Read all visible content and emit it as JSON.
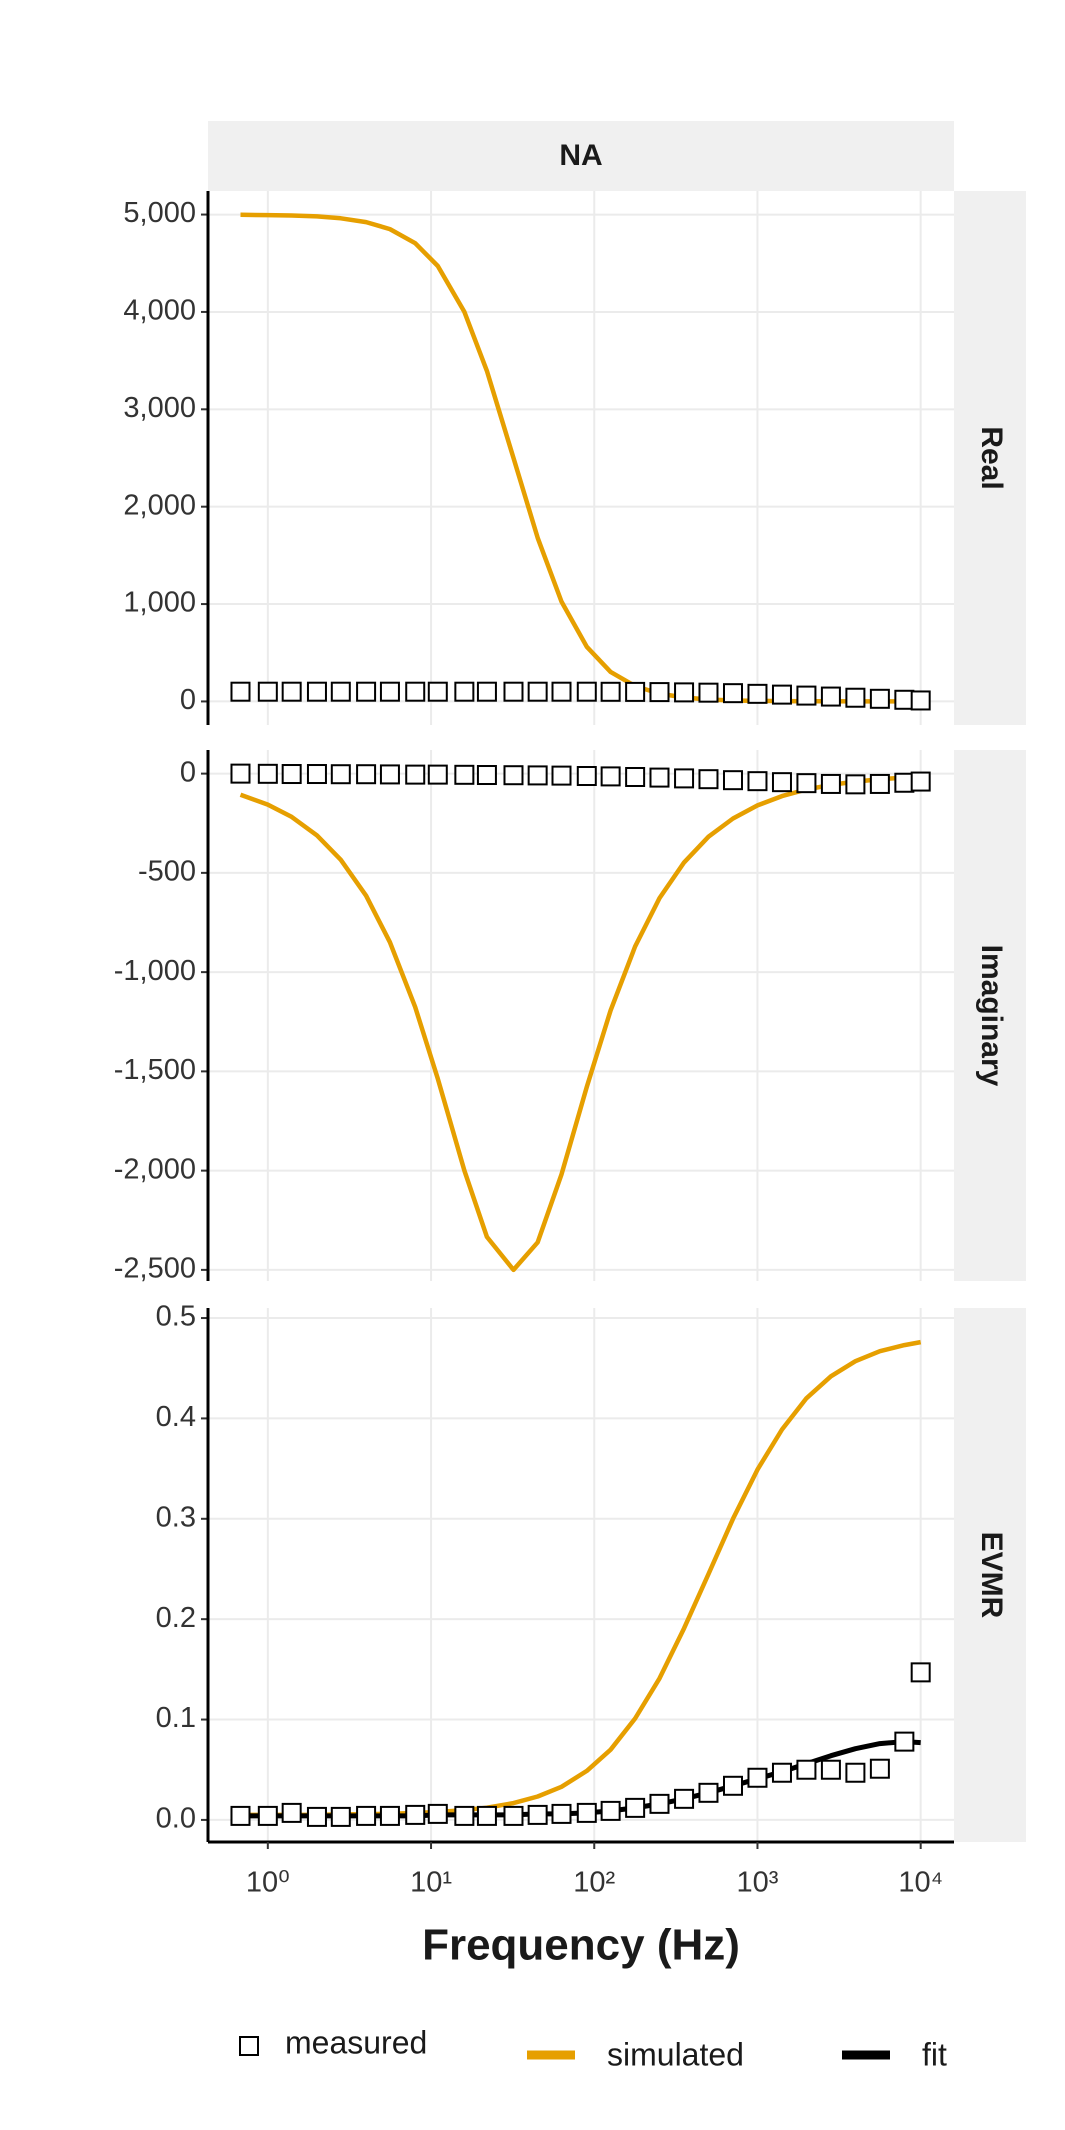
{
  "chart_data": {
    "type": "facet_line",
    "title": "NA",
    "xlabel": "Frequency (Hz)",
    "x": [
      0.68,
      1,
      1.4,
      2,
      2.8,
      4,
      5.6,
      8,
      11,
      16,
      22,
      32,
      45,
      63,
      90,
      126,
      178,
      251,
      355,
      501,
      708,
      1000,
      1413,
      1995,
      2818,
      3981,
      5623,
      7943,
      10000
    ],
    "xlim": [
      0.43,
      16000
    ],
    "log_x": true,
    "xticks": [
      {
        "value": 1,
        "label": "10⁰"
      },
      {
        "value": 10,
        "label": "10¹"
      },
      {
        "value": 100,
        "label": "10²"
      },
      {
        "value": 1000,
        "label": "10³"
      },
      {
        "value": 10000,
        "label": "10⁴"
      }
    ],
    "grid": true,
    "legend": "bottom",
    "series": [
      {
        "name": "measured",
        "color": "#000000",
        "mark": "square"
      },
      {
        "name": "simulated",
        "color": "#E69F00",
        "mark": "line"
      },
      {
        "name": "fit",
        "color": "#000000",
        "mark": "line"
      }
    ],
    "panels": [
      {
        "label": "Real",
        "ylim": [
          -242,
          5242
        ],
        "yticks": [
          0,
          {
            "value": 1000,
            "label": "1,000"
          },
          {
            "value": 2000,
            "label": "2,000"
          },
          {
            "value": 3000,
            "label": "3,000"
          },
          {
            "value": 4000,
            "label": "4,000"
          },
          {
            "value": 5000,
            "label": "5,000"
          }
        ],
        "values": [
          [
            100,
            100,
            100,
            100,
            100,
            100,
            100,
            100,
            100,
            100,
            100,
            100,
            100,
            100,
            100,
            99,
            98,
            96,
            93,
            90,
            85,
            78,
            70,
            60,
            50,
            38,
            27,
            17,
            10
          ],
          [
            4998,
            4995,
            4990,
            4981,
            4962,
            4923,
            4851,
            4706,
            4472,
            4000,
            3395,
            2500,
            1679,
            1025,
            561,
            303,
            157,
            80,
            40,
            20,
            10,
            5,
            3,
            1,
            1,
            0,
            0,
            0,
            0
          ],
          null
        ]
      },
      {
        "label": "Imaginary",
        "ylim": [
          -2556,
          119
        ],
        "yticks": [
          0,
          -500,
          {
            "value": -1000,
            "label": "-1,000"
          },
          {
            "value": -1500,
            "label": "-1,500"
          },
          {
            "value": -2000,
            "label": "-2,000"
          },
          {
            "value": -2500,
            "label": "-2,500"
          }
        ],
        "values": [
          [
            0,
            -1,
            -2,
            -2,
            -3,
            -3,
            -4,
            -5,
            -5,
            -6,
            -7,
            -8,
            -9,
            -10,
            -12,
            -14,
            -17,
            -20,
            -24,
            -28,
            -33,
            -38,
            -43,
            -48,
            -52,
            -54,
            -52,
            -46,
            -40
          ],
          [
            -106,
            -156,
            -218,
            -311,
            -434,
            -615,
            -849,
            -1176,
            -1537,
            -2000,
            -2334,
            -2500,
            -2361,
            -2019,
            -1578,
            -1193,
            -871,
            -627,
            -447,
            -318,
            -226,
            -160,
            -113,
            -80,
            -57,
            -40,
            -28,
            -20,
            -16
          ],
          null
        ]
      },
      {
        "label": "EVMR",
        "ylim": [
          -0.022,
          0.51
        ],
        "yticks": [
          {
            "value": 0,
            "label": "0.0"
          },
          0.1,
          0.2,
          0.3,
          0.4,
          0.5
        ],
        "values": [
          [
            0.004,
            0.004,
            0.007,
            0.003,
            0.003,
            0.004,
            0.004,
            0.005,
            0.006,
            0.004,
            0.004,
            0.004,
            0.005,
            0.006,
            0.007,
            0.009,
            0.012,
            0.016,
            0.021,
            0.027,
            0.034,
            0.042,
            0.047,
            0.05,
            0.05,
            0.047,
            0.051,
            0.078,
            0.147
          ],
          [
            0.005,
            0.005,
            0.005,
            0.005,
            0.0055,
            0.0057,
            0.0062,
            0.0069,
            0.0079,
            0.0098,
            0.0122,
            0.0168,
            0.0233,
            0.033,
            0.0488,
            0.07,
            0.101,
            0.141,
            0.191,
            0.245,
            0.3,
            0.349,
            0.389,
            0.42,
            0.442,
            0.457,
            0.467,
            0.473,
            0.476
          ],
          [
            0.004,
            0.004,
            0.004,
            0.004,
            0.004,
            0.004,
            0.004,
            0.004,
            0.005,
            0.005,
            0.005,
            0.005,
            0.006,
            0.006,
            0.007,
            0.009,
            0.012,
            0.016,
            0.021,
            0.027,
            0.034,
            0.041,
            0.048,
            0.056,
            0.064,
            0.071,
            0.076,
            0.078,
            0.077
          ]
        ]
      }
    ]
  }
}
